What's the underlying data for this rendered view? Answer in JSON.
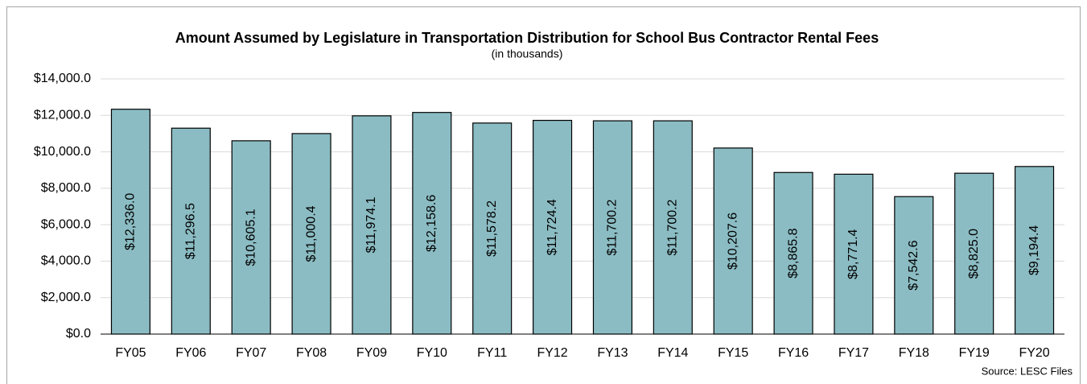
{
  "chart_data": {
    "type": "bar",
    "title": "Amount Assumed by Legislature in Transportation Distribution for School Bus Contractor Rental Fees",
    "subtitle": "(in thousands)",
    "source": "Source: LESC Files",
    "categories": [
      "FY05",
      "FY06",
      "FY07",
      "FY08",
      "FY09",
      "FY10",
      "FY11",
      "FY12",
      "FY13",
      "FY14",
      "FY15",
      "FY16",
      "FY17",
      "FY18",
      "FY19",
      "FY20"
    ],
    "values": [
      12336.0,
      11296.5,
      10605.1,
      11000.4,
      11974.1,
      12158.6,
      11578.2,
      11724.4,
      11700.2,
      11700.2,
      10207.6,
      8865.8,
      8771.4,
      7542.6,
      8825.0,
      9194.4
    ],
    "value_labels": [
      "$12,336.0",
      "$11,296.5",
      "$10,605.1",
      "$11,000.4",
      "$11,974.1",
      "$12,158.6",
      "$11,578.2",
      "$11,724.4",
      "$11,700.2",
      "$11,700.2",
      "$10,207.6",
      "$8,865.8",
      "$8,771.4",
      "$7,542.6",
      "$8,825.0",
      "$9,194.4"
    ],
    "color": "#8bbcc3",
    "ylim": [
      0,
      14000
    ],
    "yticks": [
      {
        "value": 0,
        "label": "$0.0"
      },
      {
        "value": 2000,
        "label": "$2,000.0"
      },
      {
        "value": 4000,
        "label": "$4,000.0"
      },
      {
        "value": 6000,
        "label": "$6,000.0"
      },
      {
        "value": 8000,
        "label": "$8,000.0"
      },
      {
        "value": 10000,
        "label": "$10,000.0"
      },
      {
        "value": 12000,
        "label": "$12,000.0"
      },
      {
        "value": 14000,
        "label": "$14,000.0"
      }
    ],
    "grid": true
  }
}
